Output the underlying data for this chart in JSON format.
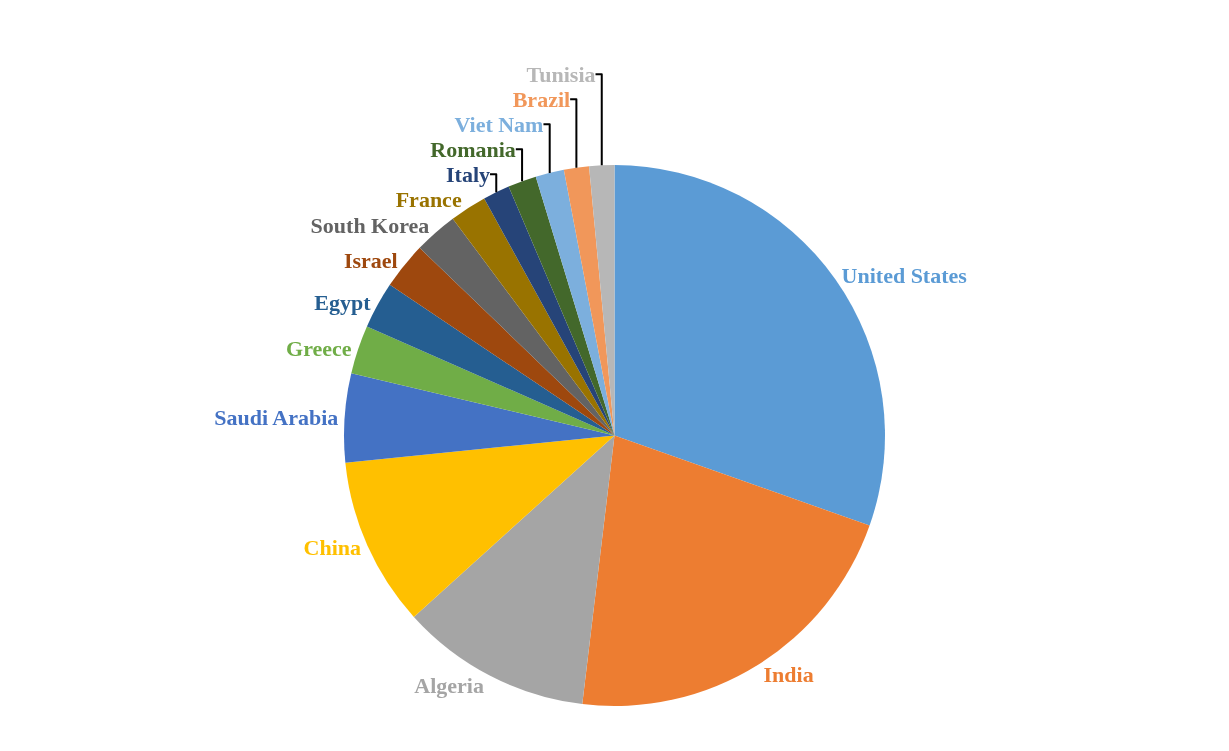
{
  "chart_data": {
    "type": "pie",
    "categories": [
      "United States",
      "India",
      "Algeria",
      "China",
      "Saudi Arabia",
      "Greece",
      "Egypt",
      "Israel",
      "South Korea",
      "France",
      "Italy",
      "Romania",
      "Viet Nam",
      "Brazil",
      "Tunisia"
    ],
    "values": [
      30.4,
      21.5,
      11.4,
      10.1,
      5.3,
      2.9,
      2.8,
      2.8,
      2.6,
      2.2,
      1.6,
      1.7,
      1.7,
      1.5,
      1.5
    ],
    "colors": [
      "#5b9bd5",
      "#ed7d31",
      "#a5a5a5",
      "#ffc000",
      "#4472c4",
      "#70ad47",
      "#255e91",
      "#9e480e",
      "#636363",
      "#997300",
      "#264478",
      "#43682b",
      "#7cafdd",
      "#f1975a",
      "#b7b7b7"
    ]
  }
}
